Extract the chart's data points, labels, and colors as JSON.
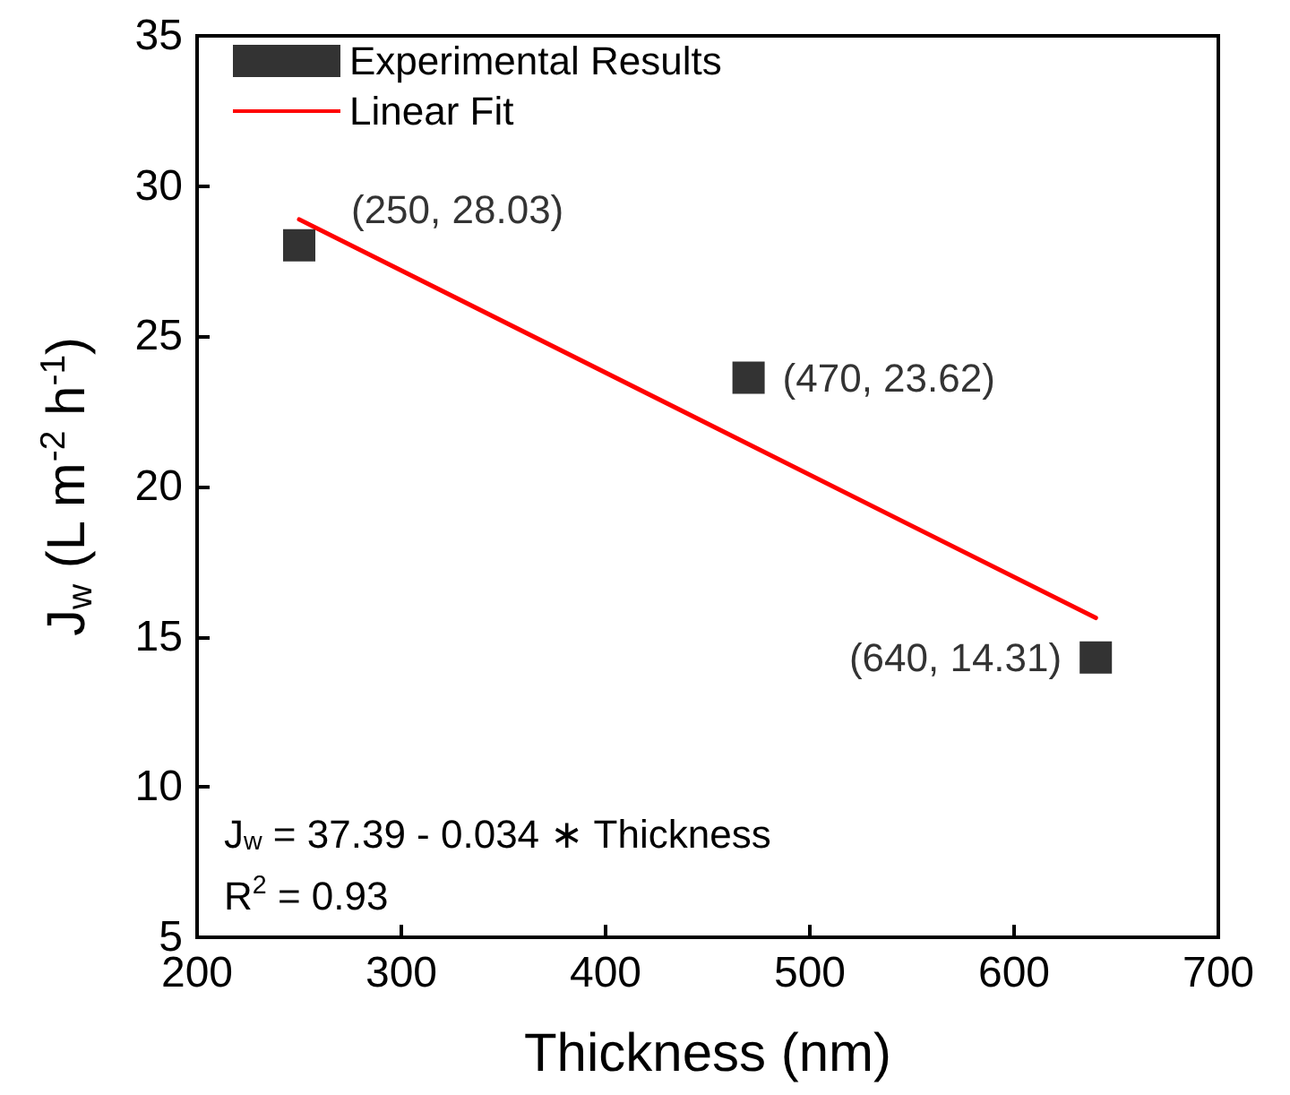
{
  "chart_data": {
    "type": "scatter",
    "xlabel": "Thickness (nm)",
    "ylabel": "J$_{w}$ (L m$^{-2}$ h$^{-1}$)",
    "xlim": [
      200,
      700
    ],
    "xticks": [
      200,
      300,
      400,
      500,
      600,
      700
    ],
    "ylim": [
      5,
      35
    ],
    "yticks": [
      5,
      10,
      15,
      20,
      25,
      30,
      35
    ],
    "grid": false,
    "legend": "top left",
    "marker": "square",
    "series": [
      {
        "name": "Experimental Results",
        "color": "#000000",
        "x": [
          250,
          470,
          640
        ],
        "values": [
          28.03,
          23.62,
          14.31
        ],
        "value_labels": [
          "(250, 28.03)",
          "(470, 23.62)",
          "(640, 14.31)"
        ]
      },
      {
        "name": "Linear Fit",
        "type": "line",
        "color": "#ff0000",
        "x": [
          250,
          640
        ],
        "values": [
          28.89,
          15.63
        ],
        "line_style": "solid",
        "marker": "none"
      }
    ],
    "annotations": [
      "J$_{w}$ = 37.39 - 0.034 ∗ Thickness",
      "R$^{2}$ = 0.93"
    ]
  }
}
